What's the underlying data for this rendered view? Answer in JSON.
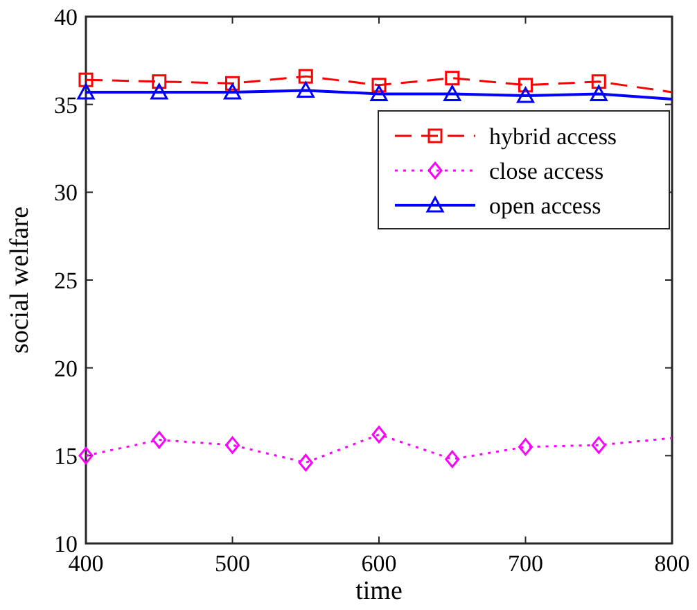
{
  "chart_data": {
    "type": "line",
    "xlabel": "time",
    "ylabel": "social welfare",
    "x": [
      400,
      450,
      500,
      550,
      600,
      650,
      700,
      750,
      800
    ],
    "series": [
      {
        "name": "hybrid access",
        "color": "#ff0000",
        "line_style": "dashed",
        "marker": "square",
        "values": [
          36.4,
          36.3,
          36.2,
          36.6,
          36.1,
          36.5,
          36.1,
          36.3,
          35.7
        ]
      },
      {
        "name": "close access",
        "color": "#ff00ff",
        "line_style": "dotted",
        "marker": "diamond",
        "values": [
          15.0,
          15.9,
          15.6,
          14.6,
          16.2,
          14.8,
          15.5,
          15.6,
          16.0
        ]
      },
      {
        "name": "open access",
        "color": "#0000ff",
        "line_style": "solid",
        "marker": "triangle",
        "values": [
          35.7,
          35.7,
          35.7,
          35.8,
          35.6,
          35.6,
          35.5,
          35.6,
          35.3
        ]
      }
    ],
    "xlim": [
      400,
      800
    ],
    "xticks": [
      400,
      500,
      600,
      700,
      800
    ],
    "ylim": [
      10,
      40
    ],
    "yticks": [
      10,
      15,
      20,
      25,
      30,
      35,
      40
    ],
    "grid": false,
    "legend": "top right"
  }
}
